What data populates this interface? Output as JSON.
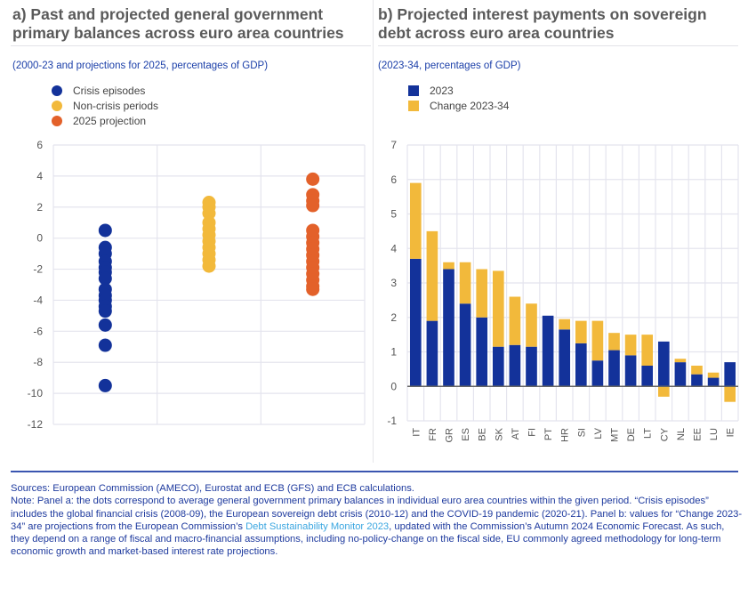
{
  "panel_a": {
    "title_line1": "a) Past and projected general government",
    "title_line2": "primary balances across euro area countries",
    "subtitle": "(2000-23 and projections for 2025, percentages of GDP)"
  },
  "panel_b": {
    "title_line1": "b) Projected interest payments on sovereign",
    "title_line2": "debt across euro area countries",
    "subtitle": "(2023-34, percentages of GDP)"
  },
  "colors": {
    "crisis": "#13329a",
    "noncrisis": "#f2b93b",
    "projection": "#e3612a",
    "bar2023": "#13329a",
    "change": "#f2b93b",
    "grid": "#e4e4ee",
    "axis_text": "#555555"
  },
  "chart_data": [
    {
      "type": "scatter",
      "title": "a) Past and projected general government primary balances across euro area countries",
      "subtitle": "(2000-23 and projections for 2025, percentages of GDP)",
      "xlabel": "",
      "ylabel": "",
      "ylim": [
        -12,
        6
      ],
      "yticks": [
        6,
        4,
        2,
        0,
        -2,
        -4,
        -6,
        -8,
        -10,
        -12
      ],
      "grid": true,
      "legend_position": "top-left",
      "series": [
        {
          "name": "Crisis episodes",
          "color_key": "crisis",
          "column": 0,
          "values": [
            0.5,
            -0.6,
            -1.0,
            -1.5,
            -1.9,
            -2.2,
            -2.6,
            -3.3,
            -3.7,
            -4.0,
            -4.4,
            -4.7,
            -5.6,
            -6.9,
            -9.5
          ]
        },
        {
          "name": "Non-crisis periods",
          "color_key": "noncrisis",
          "column": 1,
          "values": [
            2.3,
            2.0,
            1.6,
            1.0,
            0.6,
            0.2,
            -0.2,
            -0.6,
            -1.0,
            -1.4,
            -1.8
          ]
        },
        {
          "name": "2025 projection",
          "color_key": "projection",
          "column": 2,
          "values": [
            3.8,
            2.8,
            2.4,
            2.1,
            0.5,
            0.1,
            -0.3,
            -0.7,
            -1.1,
            -1.5,
            -1.9,
            -2.3,
            -2.7,
            -3.1,
            -3.3
          ]
        }
      ]
    },
    {
      "type": "bar",
      "stacked": true,
      "title": "b) Projected interest payments on sovereign debt across euro area countries",
      "subtitle": "(2023-34, percentages of GDP)",
      "xlabel": "",
      "ylabel": "",
      "ylim": [
        -1,
        7
      ],
      "yticks": [
        7,
        6,
        5,
        4,
        3,
        2,
        1,
        0,
        -1
      ],
      "grid": true,
      "legend_position": "top-left",
      "categories": [
        "IT",
        "FR",
        "GR",
        "ES",
        "BE",
        "SK",
        "AT",
        "FI",
        "PT",
        "HR",
        "SI",
        "LV",
        "MT",
        "DE",
        "LT",
        "CY",
        "NL",
        "EE",
        "LU",
        "IE"
      ],
      "series": [
        {
          "name": "2023",
          "color_key": "bar2023",
          "values": [
            3.7,
            1.9,
            3.4,
            2.4,
            2.0,
            1.15,
            1.2,
            1.15,
            2.05,
            1.65,
            1.25,
            0.75,
            1.05,
            0.9,
            0.6,
            1.3,
            0.7,
            0.35,
            0.25,
            0.7
          ]
        },
        {
          "name": "Change 2023-34",
          "color_key": "change",
          "values": [
            2.2,
            2.6,
            0.2,
            1.2,
            1.4,
            2.2,
            1.4,
            1.25,
            0.0,
            0.3,
            0.65,
            1.15,
            0.5,
            0.6,
            0.9,
            -0.3,
            0.1,
            0.25,
            0.15,
            -0.45
          ]
        }
      ]
    }
  ],
  "footer": {
    "sources": "Sources: European Commission (AMECO), Eurostat and ECB (GFS) and ECB calculations.",
    "note_part1": "Note: Panel a: the dots correspond to average general government primary balances in individual euro area countries within the given period. “Crisis episodes” includes the global financial crisis (2008-09), the European sovereign debt crisis (2010-12) and the COVID-19 pandemic (2020-21). Panel b: values for “Change 2023-34” are projections from the European Commission’s ",
    "note_link": "Debt Sustainability Monitor 2023",
    "note_part2": ", updated with the Commission’s Autumn 2024 Economic Forecast. As such, they depend on a range of fiscal and macro-financial assumptions, including no-policy-change on the fiscal side, EU commonly agreed methodology for long-term economic growth and market-based interest rate projections."
  }
}
